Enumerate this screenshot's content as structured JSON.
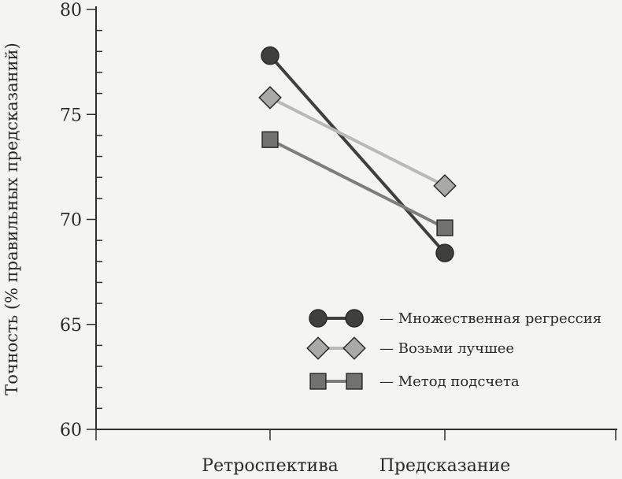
{
  "chart_data": {
    "type": "line",
    "title": "",
    "xlabel": "",
    "ylabel": "Точность (% правильных предсказаний)",
    "categories": [
      "Ретроспектива",
      "Предсказание"
    ],
    "ylim": [
      60,
      80
    ],
    "yticks": [
      60,
      65,
      70,
      75,
      80
    ],
    "grid": false,
    "legend_position": "bottom-right",
    "series": [
      {
        "name": "Множественная регрессия",
        "legend_label": "— Множественная регрессия",
        "marker": "circle",
        "line_color": "#3f3f3b",
        "marker_fill": "#3f3f3b",
        "values": [
          77.8,
          68.4
        ]
      },
      {
        "name": "Возьми лучшее",
        "legend_label": "— Возьми лучшее",
        "marker": "diamond",
        "line_color": "#b9b9b6",
        "marker_fill": "#a9a9a6",
        "values": [
          75.8,
          71.6
        ]
      },
      {
        "name": "Метод подсчета",
        "legend_label": "— Метод подсчета",
        "marker": "square",
        "line_color": "#7e7e7a",
        "marker_fill": "#727270",
        "values": [
          73.8,
          69.6
        ]
      }
    ]
  }
}
